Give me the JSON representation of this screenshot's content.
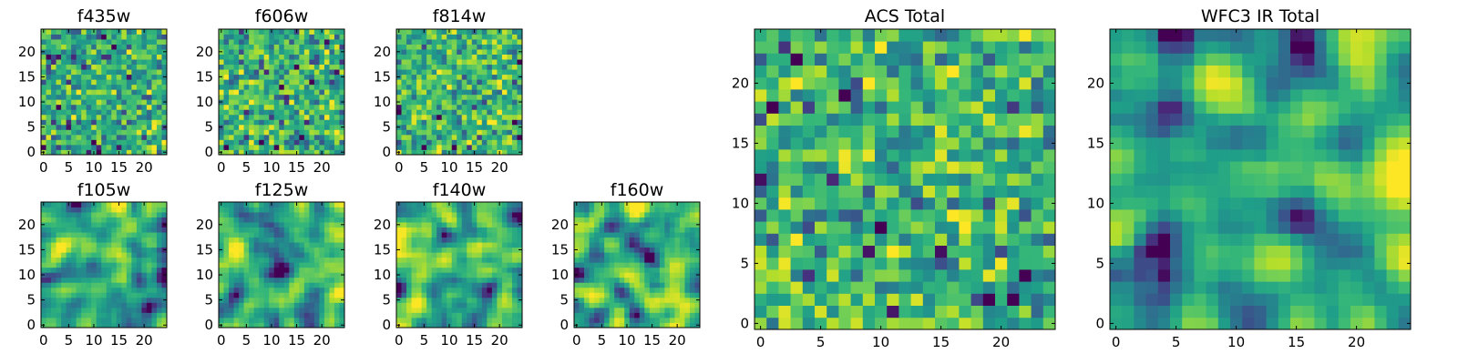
{
  "chart_data": [
    {
      "id": "f435w",
      "type": "heatmap",
      "title": "f435w",
      "grid_size": 25,
      "xlim": [
        -0.5,
        24.5
      ],
      "ylim": [
        -0.5,
        24.5
      ],
      "x_ticks": [
        0,
        5,
        10,
        15,
        20
      ],
      "y_ticks": [
        0,
        5,
        10,
        15,
        20
      ],
      "colormap": "viridis",
      "pattern": "pixel noise",
      "grid": false
    },
    {
      "id": "f606w",
      "type": "heatmap",
      "title": "f606w",
      "grid_size": 25,
      "xlim": [
        -0.5,
        24.5
      ],
      "ylim": [
        -0.5,
        24.5
      ],
      "x_ticks": [
        0,
        5,
        10,
        15,
        20
      ],
      "y_ticks": [
        0,
        5,
        10,
        15,
        20
      ],
      "colormap": "viridis",
      "pattern": "pixel noise",
      "grid": false
    },
    {
      "id": "f814w",
      "type": "heatmap",
      "title": "f814w",
      "grid_size": 25,
      "xlim": [
        -0.5,
        24.5
      ],
      "ylim": [
        -0.5,
        24.5
      ],
      "x_ticks": [
        0,
        5,
        10,
        15,
        20
      ],
      "y_ticks": [
        0,
        5,
        10,
        15,
        20
      ],
      "colormap": "viridis",
      "pattern": "pixel noise",
      "grid": false
    },
    {
      "id": "f105w",
      "type": "heatmap",
      "title": "f105w",
      "grid_size": 25,
      "xlim": [
        -0.5,
        24.5
      ],
      "ylim": [
        -0.5,
        24.5
      ],
      "x_ticks": [
        0,
        5,
        10,
        15,
        20
      ],
      "y_ticks": [
        0,
        5,
        10,
        15,
        20
      ],
      "colormap": "viridis",
      "pattern": "smooth noise",
      "grid": false
    },
    {
      "id": "f125w",
      "type": "heatmap",
      "title": "f125w",
      "grid_size": 25,
      "xlim": [
        -0.5,
        24.5
      ],
      "ylim": [
        -0.5,
        24.5
      ],
      "x_ticks": [
        0,
        5,
        10,
        15,
        20
      ],
      "y_ticks": [
        0,
        5,
        10,
        15,
        20
      ],
      "colormap": "viridis",
      "pattern": "smooth noise",
      "grid": false
    },
    {
      "id": "f140w",
      "type": "heatmap",
      "title": "f140w",
      "grid_size": 25,
      "xlim": [
        -0.5,
        24.5
      ],
      "ylim": [
        -0.5,
        24.5
      ],
      "x_ticks": [
        0,
        5,
        10,
        15,
        20
      ],
      "y_ticks": [
        0,
        5,
        10,
        15,
        20
      ],
      "colormap": "viridis",
      "pattern": "smooth noise",
      "grid": false
    },
    {
      "id": "f160w",
      "type": "heatmap",
      "title": "f160w",
      "grid_size": 25,
      "xlim": [
        -0.5,
        24.5
      ],
      "ylim": [
        -0.5,
        24.5
      ],
      "x_ticks": [
        0,
        5,
        10,
        15,
        20
      ],
      "y_ticks": [
        0,
        5,
        10,
        15,
        20
      ],
      "colormap": "viridis",
      "pattern": "smooth noise",
      "grid": false
    },
    {
      "id": "acs-total",
      "type": "heatmap",
      "title": "ACS Total",
      "grid_size": 25,
      "xlim": [
        -0.5,
        24.5
      ],
      "ylim": [
        -0.5,
        24.5
      ],
      "x_ticks": [
        0,
        5,
        10,
        15,
        20
      ],
      "y_ticks": [
        0,
        5,
        10,
        15,
        20
      ],
      "colormap": "viridis",
      "pattern": "pixel noise",
      "grid": false
    },
    {
      "id": "wfc3-ir-total",
      "type": "heatmap",
      "title": "WFC3 IR Total",
      "grid_size": 25,
      "xlim": [
        -0.5,
        24.5
      ],
      "ylim": [
        -0.5,
        24.5
      ],
      "x_ticks": [
        0,
        5,
        10,
        15,
        20
      ],
      "y_ticks": [
        0,
        5,
        10,
        15,
        20
      ],
      "colormap": "viridis",
      "pattern": "smooth noise",
      "grid": false
    }
  ]
}
